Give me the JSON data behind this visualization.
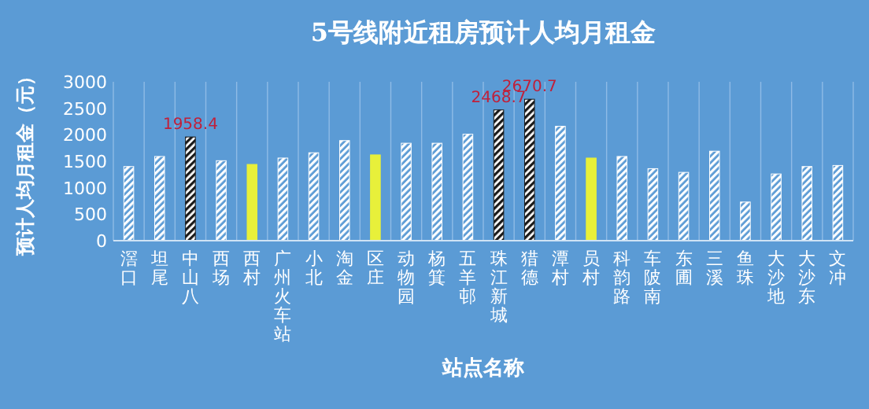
{
  "chart_data": {
    "type": "bar",
    "title": "5号线附近租房预计人均月租金",
    "xlabel": "站点名称",
    "ylabel": "预计人均月租金（元）",
    "categories": [
      "滘口",
      "坦尾",
      "中山八",
      "西场",
      "西村",
      "广州火车站",
      "小北",
      "淘金",
      "区庄",
      "动物园",
      "杨箕",
      "五羊邨",
      "珠江新城",
      "猎德",
      "潭村",
      "员村",
      "科韵路",
      "车陂南",
      "东圃",
      "三溪",
      "鱼珠",
      "大沙地",
      "大沙东",
      "文冲"
    ],
    "values": [
      1400,
      1590,
      1958.4,
      1510,
      1440,
      1560,
      1660,
      1890,
      1620,
      1840,
      1840,
      2010,
      2468.7,
      2670.7,
      2160,
      1560,
      1590,
      1360,
      1290,
      1690,
      730,
      1260,
      1400,
      1420
    ],
    "colors": [
      "#ffffff",
      "#ffffff",
      "#1a1a1a",
      "#ffffff",
      "#e8f03a",
      "#ffffff",
      "#ffffff",
      "#ffffff",
      "#e8f03a",
      "#ffffff",
      "#ffffff",
      "#ffffff",
      "#1a1a1a",
      "#1a1a1a",
      "#ffffff",
      "#e8f03a",
      "#ffffff",
      "#ffffff",
      "#ffffff",
      "#ffffff",
      "#ffffff",
      "#ffffff",
      "#ffffff",
      "#ffffff"
    ],
    "value_labels": [
      null,
      null,
      "1958.4",
      null,
      null,
      null,
      null,
      null,
      null,
      null,
      null,
      null,
      "2468.7",
      "2670.7",
      null,
      null,
      null,
      null,
      null,
      null,
      null,
      null,
      null,
      null
    ],
    "ylim": [
      0,
      3000
    ],
    "yticks": [
      0,
      500,
      1000,
      1500,
      2000,
      2500,
      3000
    ],
    "grid": "x"
  }
}
